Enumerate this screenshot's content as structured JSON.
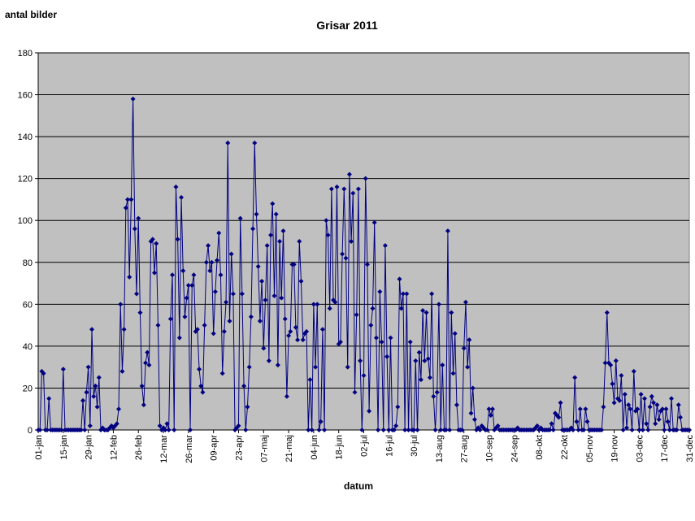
{
  "chart_data": {
    "type": "line",
    "title": "Grisar 2011",
    "ylabel": "antal bilder",
    "xlabel": "datum",
    "categories": [
      "01-jan",
      null,
      null,
      null,
      null,
      null,
      null,
      null,
      null,
      null,
      null,
      null,
      null,
      null,
      "15-jan",
      null,
      null,
      null,
      null,
      null,
      null,
      null,
      null,
      null,
      null,
      null,
      null,
      null,
      "29-jan",
      null,
      null,
      null,
      null,
      null,
      null,
      null,
      null,
      null,
      null,
      null,
      null,
      null,
      "12-feb",
      null,
      null,
      null,
      null,
      null,
      null,
      null,
      null,
      null,
      null,
      null,
      null,
      null,
      "26-feb",
      null,
      null,
      null,
      null,
      null,
      null,
      null,
      null,
      null,
      null,
      null,
      null,
      null,
      "12-mar",
      null,
      null,
      null,
      null,
      null,
      null,
      null,
      null,
      null,
      null,
      null,
      null,
      null,
      "26-mar",
      null,
      null,
      null,
      null,
      null,
      null,
      null,
      null,
      null,
      null,
      null,
      null,
      null,
      "09-apr",
      null,
      null,
      null,
      null,
      null,
      null,
      null,
      null,
      null,
      null,
      null,
      null,
      null,
      "23-apr",
      null,
      null,
      null,
      null,
      null,
      null,
      null,
      null,
      null,
      null,
      null,
      null,
      null,
      "07-maj",
      null,
      null,
      null,
      null,
      null,
      null,
      null,
      null,
      null,
      null,
      null,
      null,
      null,
      "21-maj",
      null,
      null,
      null,
      null,
      null,
      null,
      null,
      null,
      null,
      null,
      null,
      null,
      null,
      "04-jun",
      null,
      null,
      null,
      null,
      null,
      null,
      null,
      null,
      null,
      null,
      null,
      null,
      null,
      "18-jun",
      null,
      null,
      null,
      null,
      null,
      null,
      null,
      null,
      null,
      null,
      null,
      null,
      null,
      "02-jul",
      null,
      null,
      null,
      null,
      null,
      null,
      null,
      null,
      null,
      null,
      null,
      null,
      null,
      "16-jul",
      null,
      null,
      null,
      null,
      null,
      null,
      null,
      null,
      null,
      null,
      null,
      null,
      null,
      "30-jul",
      null,
      null,
      null,
      null,
      null,
      null,
      null,
      null,
      null,
      null,
      null,
      null,
      null,
      "13-aug",
      null,
      null,
      null,
      null,
      null,
      null,
      null,
      null,
      null,
      null,
      null,
      null,
      null,
      "27-aug",
      null,
      null,
      null,
      null,
      null,
      null,
      null,
      null,
      null,
      null,
      null,
      null,
      null,
      "10-sep",
      null,
      null,
      null,
      null,
      null,
      null,
      null,
      null,
      null,
      null,
      null,
      null,
      null,
      "24-sep",
      null,
      null,
      null,
      null,
      null,
      null,
      null,
      null,
      null,
      null,
      null,
      null,
      null,
      "08-okt",
      null,
      null,
      null,
      null,
      null,
      null,
      null,
      null,
      null,
      null,
      null,
      null,
      null,
      "22-okt",
      null,
      null,
      null,
      null,
      null,
      null,
      null,
      null,
      null,
      null,
      null,
      null,
      null,
      "05-nov",
      null,
      null,
      null,
      null,
      null,
      null,
      null,
      null,
      null,
      null,
      null,
      null,
      null,
      "19-nov",
      null,
      null,
      null,
      null,
      null,
      null,
      null,
      null,
      null,
      null,
      null,
      null,
      null,
      "03-dec",
      null,
      null,
      null,
      null,
      null,
      null,
      null,
      null,
      null,
      null,
      null,
      null,
      null,
      "17-dec",
      null,
      null,
      null,
      null,
      null,
      null,
      null,
      null,
      null,
      null,
      null,
      null,
      null,
      "31-dec"
    ],
    "values": [
      0,
      0,
      28,
      27,
      0,
      0,
      15,
      0,
      0,
      0,
      0,
      0,
      0,
      0,
      29,
      0,
      0,
      0,
      0,
      0,
      0,
      0,
      0,
      0,
      0,
      14,
      0,
      18,
      30,
      2,
      48,
      16,
      21,
      11,
      25,
      0,
      1,
      0,
      0,
      0,
      1,
      2,
      1,
      2,
      3,
      10,
      60,
      28,
      48,
      106,
      110,
      73,
      110,
      158,
      96,
      65,
      101,
      56,
      21,
      12,
      32,
      37,
      31,
      90,
      91,
      75,
      89,
      50,
      2,
      0,
      1,
      0,
      3,
      0,
      53,
      74,
      0,
      116,
      91,
      44,
      111,
      76,
      54,
      63,
      69,
      0,
      69,
      74,
      47,
      48,
      29,
      21,
      18,
      50,
      80,
      88,
      76,
      80,
      46,
      66,
      81,
      94,
      74,
      27,
      47,
      61,
      137,
      52,
      84,
      65,
      0,
      1,
      2,
      101,
      65,
      21,
      0,
      11,
      30,
      54,
      96,
      137,
      103,
      78,
      52,
      71,
      39,
      62,
      88,
      33,
      93,
      108,
      64,
      103,
      31,
      90,
      63,
      95,
      53,
      16,
      45,
      47,
      79,
      79,
      49,
      43,
      90,
      71,
      43,
      46,
      47,
      0,
      24,
      0,
      60,
      30,
      60,
      0,
      4,
      48,
      0,
      100,
      93,
      58,
      115,
      62,
      61,
      116,
      41,
      42,
      84,
      115,
      82,
      30,
      122,
      90,
      113,
      18,
      55,
      115,
      33,
      0,
      26,
      120,
      79,
      9,
      50,
      58,
      99,
      44,
      0,
      66,
      42,
      0,
      88,
      35,
      0,
      44,
      0,
      0,
      2,
      11,
      72,
      58,
      65,
      0,
      65,
      0,
      42,
      0,
      0,
      33,
      0,
      37,
      24,
      57,
      33,
      56,
      34,
      25,
      65,
      16,
      0,
      18,
      60,
      0,
      31,
      0,
      0,
      95,
      0,
      56,
      27,
      46,
      12,
      0,
      0,
      0,
      39,
      61,
      30,
      43,
      8,
      20,
      5,
      0,
      1,
      0,
      2,
      1,
      0,
      0,
      10,
      7,
      10,
      0,
      1,
      2,
      0,
      0,
      0,
      0,
      0,
      0,
      0,
      0,
      0,
      0,
      1,
      0,
      0,
      0,
      0,
      0,
      0,
      0,
      0,
      0,
      1,
      2,
      0,
      1,
      0,
      0,
      0,
      0,
      0,
      3,
      0,
      8,
      7,
      6,
      13,
      0,
      0,
      0,
      0,
      0,
      1,
      0,
      25,
      4,
      0,
      10,
      0,
      0,
      10,
      4,
      0,
      0,
      0,
      0,
      0,
      0,
      0,
      0,
      11,
      32,
      56,
      32,
      31,
      22,
      13,
      33,
      15,
      14,
      26,
      0,
      17,
      1,
      12,
      10,
      0,
      28,
      9,
      10,
      0,
      17,
      0,
      15,
      3,
      0,
      11,
      16,
      13,
      3,
      12,
      5,
      9,
      10,
      0,
      10,
      4,
      0,
      15,
      0,
      0,
      0,
      12,
      6,
      0,
      0,
      0,
      0,
      0
    ],
    "color": "#000080",
    "plot_background": "#c0c0c0",
    "ylim": [
      0,
      180
    ],
    "yticks": [
      0,
      20,
      40,
      60,
      80,
      100,
      120,
      140,
      160,
      180
    ],
    "grid": true
  }
}
